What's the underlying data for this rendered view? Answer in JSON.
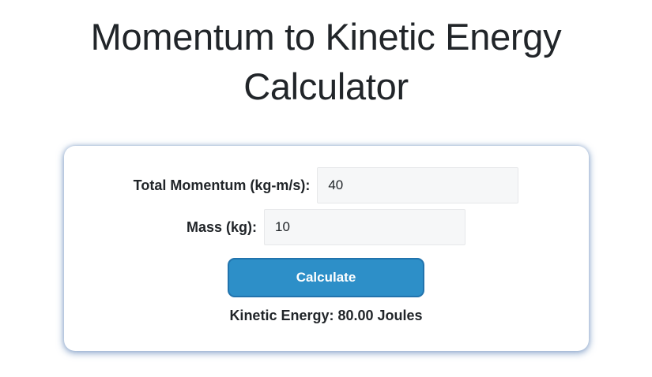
{
  "page": {
    "title": "Momentum to Kinetic Energy Calculator"
  },
  "calculator": {
    "momentum_label": "Total Momentum (kg-m/s):",
    "momentum_value": "40",
    "mass_label": "Mass (kg):",
    "mass_value": "10",
    "calculate_label": "Calculate",
    "result_text": "Kinetic Energy: 80.00 Joules"
  },
  "colors": {
    "text": "#212529",
    "input_bg": "#f6f7f8",
    "input_border": "#e7e8ea",
    "button_bg": "#2d8fc8",
    "button_border": "#2173ad",
    "button_text": "#ffffff",
    "card_glow": "#8fb0d6"
  }
}
